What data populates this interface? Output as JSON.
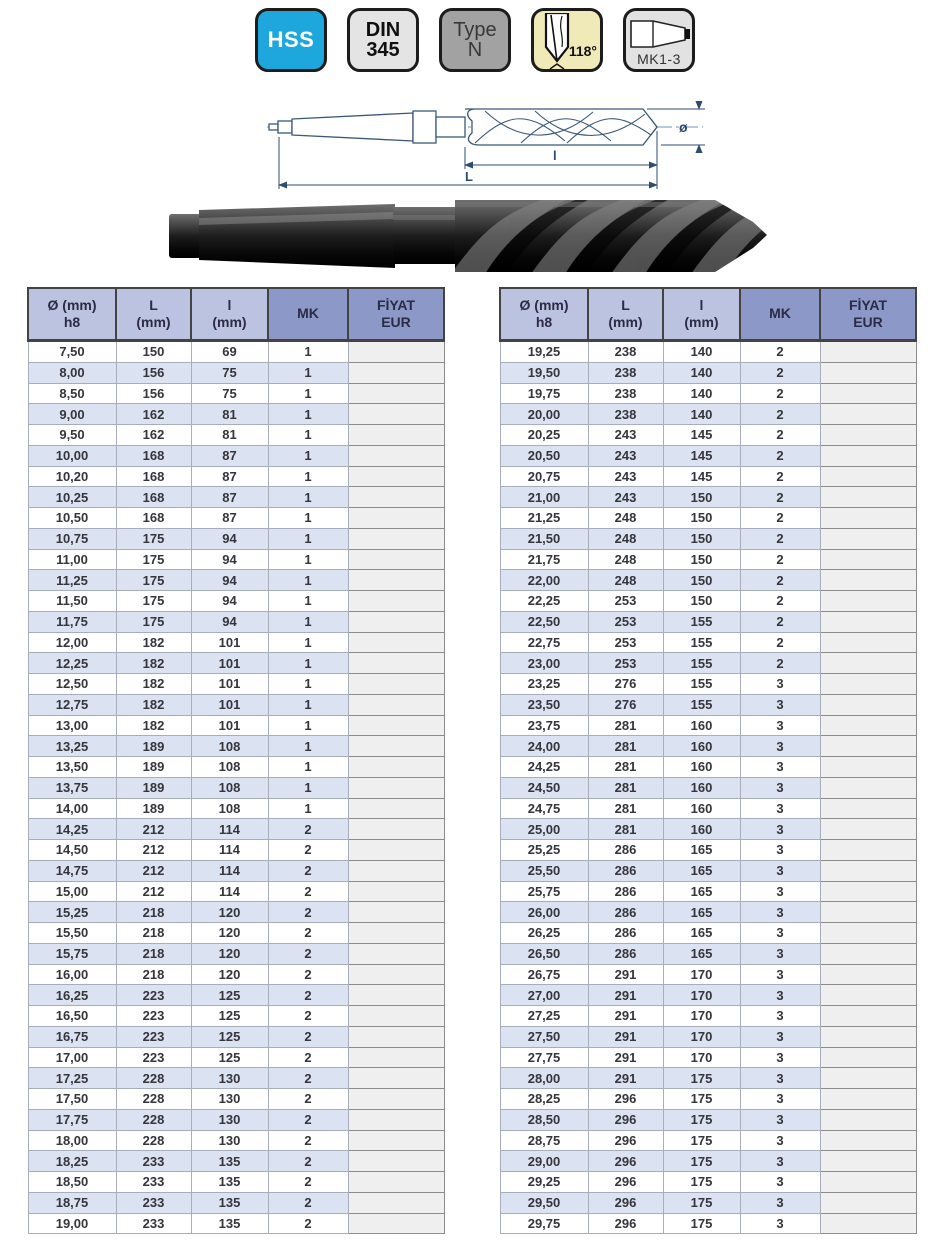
{
  "badges": {
    "hss": {
      "label": "HSS",
      "bg": "#1ea7dd"
    },
    "din": {
      "line1": "DIN",
      "line2": "345",
      "bg": "#e4e4e4"
    },
    "type": {
      "line1": "Type",
      "line2": "N",
      "bg": "#a2a2a2"
    },
    "point_angle": {
      "label": "118°",
      "bg": "#f0e9b8"
    },
    "morse_taper": {
      "label": "MK1-3",
      "bg": "#e2e2e2"
    }
  },
  "diagram": {
    "label_flute_length": "l",
    "label_total_length": "L",
    "label_diameter": "ø"
  },
  "table": {
    "columns": [
      {
        "line1": "Ø (mm)",
        "line2": "h8"
      },
      {
        "line1": "L",
        "line2": "(mm)"
      },
      {
        "line1": "l",
        "line2": "(mm)"
      },
      {
        "line1": "MK",
        "line2": ""
      },
      {
        "line1": "FİYAT",
        "line2": "EUR"
      }
    ],
    "colors": {
      "header_light": "#bcc3e0",
      "header_dark": "#8c98c8",
      "stripe_blue": "#dbe2f1",
      "price_cell": "#efefef",
      "hss_blue": "#1ea7dd",
      "angle_cream": "#f0e9b8"
    },
    "left_rows": [
      [
        "7,50",
        "150",
        "69",
        "1",
        ""
      ],
      [
        "8,00",
        "156",
        "75",
        "1",
        ""
      ],
      [
        "8,50",
        "156",
        "75",
        "1",
        ""
      ],
      [
        "9,00",
        "162",
        "81",
        "1",
        ""
      ],
      [
        "9,50",
        "162",
        "81",
        "1",
        ""
      ],
      [
        "10,00",
        "168",
        "87",
        "1",
        ""
      ],
      [
        "10,20",
        "168",
        "87",
        "1",
        ""
      ],
      [
        "10,25",
        "168",
        "87",
        "1",
        ""
      ],
      [
        "10,50",
        "168",
        "87",
        "1",
        ""
      ],
      [
        "10,75",
        "175",
        "94",
        "1",
        ""
      ],
      [
        "11,00",
        "175",
        "94",
        "1",
        ""
      ],
      [
        "11,25",
        "175",
        "94",
        "1",
        ""
      ],
      [
        "11,50",
        "175",
        "94",
        "1",
        ""
      ],
      [
        "11,75",
        "175",
        "94",
        "1",
        ""
      ],
      [
        "12,00",
        "182",
        "101",
        "1",
        ""
      ],
      [
        "12,25",
        "182",
        "101",
        "1",
        ""
      ],
      [
        "12,50",
        "182",
        "101",
        "1",
        ""
      ],
      [
        "12,75",
        "182",
        "101",
        "1",
        ""
      ],
      [
        "13,00",
        "182",
        "101",
        "1",
        ""
      ],
      [
        "13,25",
        "189",
        "108",
        "1",
        ""
      ],
      [
        "13,50",
        "189",
        "108",
        "1",
        ""
      ],
      [
        "13,75",
        "189",
        "108",
        "1",
        ""
      ],
      [
        "14,00",
        "189",
        "108",
        "1",
        ""
      ],
      [
        "14,25",
        "212",
        "114",
        "2",
        ""
      ],
      [
        "14,50",
        "212",
        "114",
        "2",
        ""
      ],
      [
        "14,75",
        "212",
        "114",
        "2",
        ""
      ],
      [
        "15,00",
        "212",
        "114",
        "2",
        ""
      ],
      [
        "15,25",
        "218",
        "120",
        "2",
        ""
      ],
      [
        "15,50",
        "218",
        "120",
        "2",
        ""
      ],
      [
        "15,75",
        "218",
        "120",
        "2",
        ""
      ],
      [
        "16,00",
        "218",
        "120",
        "2",
        ""
      ],
      [
        "16,25",
        "223",
        "125",
        "2",
        ""
      ],
      [
        "16,50",
        "223",
        "125",
        "2",
        ""
      ],
      [
        "16,75",
        "223",
        "125",
        "2",
        ""
      ],
      [
        "17,00",
        "223",
        "125",
        "2",
        ""
      ],
      [
        "17,25",
        "228",
        "130",
        "2",
        ""
      ],
      [
        "17,50",
        "228",
        "130",
        "2",
        ""
      ],
      [
        "17,75",
        "228",
        "130",
        "2",
        ""
      ],
      [
        "18,00",
        "228",
        "130",
        "2",
        ""
      ],
      [
        "18,25",
        "233",
        "135",
        "2",
        ""
      ],
      [
        "18,50",
        "233",
        "135",
        "2",
        ""
      ],
      [
        "18,75",
        "233",
        "135",
        "2",
        ""
      ],
      [
        "19,00",
        "233",
        "135",
        "2",
        ""
      ]
    ],
    "right_rows": [
      [
        "19,25",
        "238",
        "140",
        "2",
        ""
      ],
      [
        "19,50",
        "238",
        "140",
        "2",
        ""
      ],
      [
        "19,75",
        "238",
        "140",
        "2",
        ""
      ],
      [
        "20,00",
        "238",
        "140",
        "2",
        ""
      ],
      [
        "20,25",
        "243",
        "145",
        "2",
        ""
      ],
      [
        "20,50",
        "243",
        "145",
        "2",
        ""
      ],
      [
        "20,75",
        "243",
        "145",
        "2",
        ""
      ],
      [
        "21,00",
        "243",
        "150",
        "2",
        ""
      ],
      [
        "21,25",
        "248",
        "150",
        "2",
        ""
      ],
      [
        "21,50",
        "248",
        "150",
        "2",
        ""
      ],
      [
        "21,75",
        "248",
        "150",
        "2",
        ""
      ],
      [
        "22,00",
        "248",
        "150",
        "2",
        ""
      ],
      [
        "22,25",
        "253",
        "150",
        "2",
        ""
      ],
      [
        "22,50",
        "253",
        "155",
        "2",
        ""
      ],
      [
        "22,75",
        "253",
        "155",
        "2",
        ""
      ],
      [
        "23,00",
        "253",
        "155",
        "2",
        ""
      ],
      [
        "23,25",
        "276",
        "155",
        "3",
        ""
      ],
      [
        "23,50",
        "276",
        "155",
        "3",
        ""
      ],
      [
        "23,75",
        "281",
        "160",
        "3",
        ""
      ],
      [
        "24,00",
        "281",
        "160",
        "3",
        ""
      ],
      [
        "24,25",
        "281",
        "160",
        "3",
        ""
      ],
      [
        "24,50",
        "281",
        "160",
        "3",
        ""
      ],
      [
        "24,75",
        "281",
        "160",
        "3",
        ""
      ],
      [
        "25,00",
        "281",
        "160",
        "3",
        ""
      ],
      [
        "25,25",
        "286",
        "165",
        "3",
        ""
      ],
      [
        "25,50",
        "286",
        "165",
        "3",
        ""
      ],
      [
        "25,75",
        "286",
        "165",
        "3",
        ""
      ],
      [
        "26,00",
        "286",
        "165",
        "3",
        ""
      ],
      [
        "26,25",
        "286",
        "165",
        "3",
        ""
      ],
      [
        "26,50",
        "286",
        "165",
        "3",
        ""
      ],
      [
        "26,75",
        "291",
        "170",
        "3",
        ""
      ],
      [
        "27,00",
        "291",
        "170",
        "3",
        ""
      ],
      [
        "27,25",
        "291",
        "170",
        "3",
        ""
      ],
      [
        "27,50",
        "291",
        "170",
        "3",
        ""
      ],
      [
        "27,75",
        "291",
        "170",
        "3",
        ""
      ],
      [
        "28,00",
        "291",
        "175",
        "3",
        ""
      ],
      [
        "28,25",
        "296",
        "175",
        "3",
        ""
      ],
      [
        "28,50",
        "296",
        "175",
        "3",
        ""
      ],
      [
        "28,75",
        "296",
        "175",
        "3",
        ""
      ],
      [
        "29,00",
        "296",
        "175",
        "3",
        ""
      ],
      [
        "29,25",
        "296",
        "175",
        "3",
        ""
      ],
      [
        "29,50",
        "296",
        "175",
        "3",
        ""
      ],
      [
        "29,75",
        "296",
        "175",
        "3",
        ""
      ]
    ]
  }
}
